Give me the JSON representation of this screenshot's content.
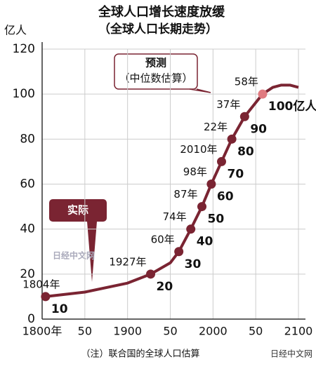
{
  "chart_data": {
    "type": "line",
    "title": "全球人口增长速度放缓",
    "subtitle": "（全球人口长期走势）",
    "y_unit": "亿人",
    "x": [
      1804,
      1850,
      1900,
      1927,
      1950,
      1960,
      1974,
      1987,
      1998,
      2010,
      2022,
      2037,
      2058,
      2070,
      2080,
      2090,
      2100
    ],
    "values": [
      10,
      12,
      16,
      20,
      25,
      30,
      40,
      50,
      60,
      70,
      80,
      90,
      100,
      103,
      104,
      104,
      103
    ],
    "color": "#7a2432",
    "milestones": {
      "x": [
        1804,
        1927,
        1960,
        1974,
        1987,
        1998,
        2010,
        2022,
        2037,
        2058
      ],
      "values": [
        10,
        20,
        30,
        40,
        50,
        60,
        70,
        80,
        90,
        100
      ],
      "year_labels": [
        "1804年",
        "1927年",
        "60年",
        "74年",
        "87年",
        "98年",
        "2010年",
        "22年",
        "37年",
        "58年"
      ],
      "value_labels": [
        "10",
        "20",
        "30",
        "40",
        "50",
        "60",
        "70",
        "80",
        "90",
        "100亿人"
      ],
      "colors": [
        "#7a2432",
        "#7a2432",
        "#7a2432",
        "#7a2432",
        "#7a2432",
        "#7a2432",
        "#7a2432",
        "#7a2432",
        "#7a2432",
        "#e07a80"
      ]
    },
    "xlim": [
      1800,
      2100
    ],
    "xticks": [
      {
        "value": 1800,
        "label": "1800年"
      },
      {
        "value": 1850,
        "label": "50"
      },
      1900,
      {
        "value": 1950,
        "label": "50"
      },
      2000,
      {
        "value": 2050,
        "label": "50"
      },
      2100
    ],
    "ylim": [
      0,
      120
    ],
    "yticks": [
      0,
      20,
      40,
      60,
      80,
      100,
      120
    ],
    "grid": true,
    "annotations": {
      "actual": "实际",
      "forecast": "预测",
      "forecast_note": "（中位数估算）"
    },
    "footnote": "（注）联合国的全球人口估算",
    "watermark": "日经中文网"
  }
}
